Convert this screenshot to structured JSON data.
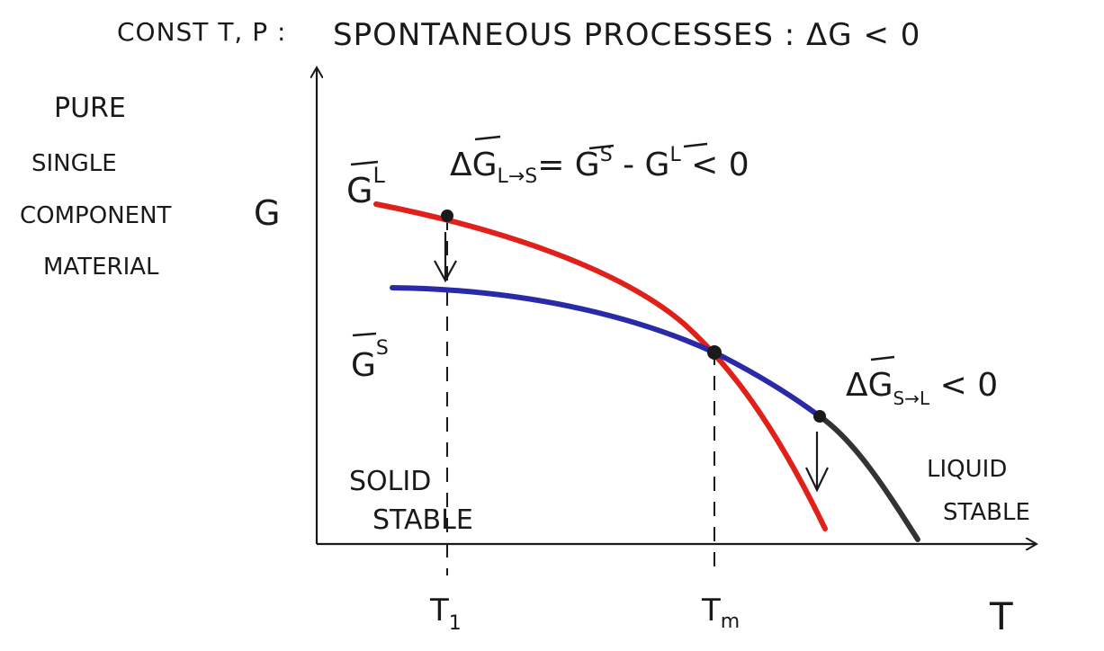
{
  "header": {
    "conditions": "CONST T, P :",
    "statement": "SPONTANEOUS PROCESSES : ΔG < 0"
  },
  "side_note": [
    "PURE",
    "SINGLE",
    "COMPONENT",
    "MATERIAL"
  ],
  "axes": {
    "y_label": "G",
    "x_label": "T",
    "ticks": {
      "t1": "T",
      "t1_sub": "1",
      "tm": "T",
      "tm_sub": "m"
    }
  },
  "labels": {
    "gl": "G",
    "gl_sup": "L",
    "gs": "G",
    "gs_sup": "S",
    "eq_l_to_s": "ΔG",
    "eq_l_to_s_sub": "L→S",
    "eq_l_to_s_rhs": "= G",
    "eq_rhs_sup1": "S",
    "eq_rhs_mid": " - G",
    "eq_rhs_sup2": "L",
    "eq_rhs_end": " < 0",
    "eq_s_to_l": "ΔG",
    "eq_s_to_l_sub": "S→L",
    "eq_s_to_l_end": " < 0",
    "solid_1": "SOLID",
    "solid_2": "STABLE",
    "liquid_1": "LIQUID",
    "liquid_2": "STABLE"
  },
  "colors": {
    "liquid_curve": "#e0201a",
    "solid_curve": "#2a2aa8",
    "extension_curve": "#333333",
    "ink": "#1a1a1a"
  }
}
